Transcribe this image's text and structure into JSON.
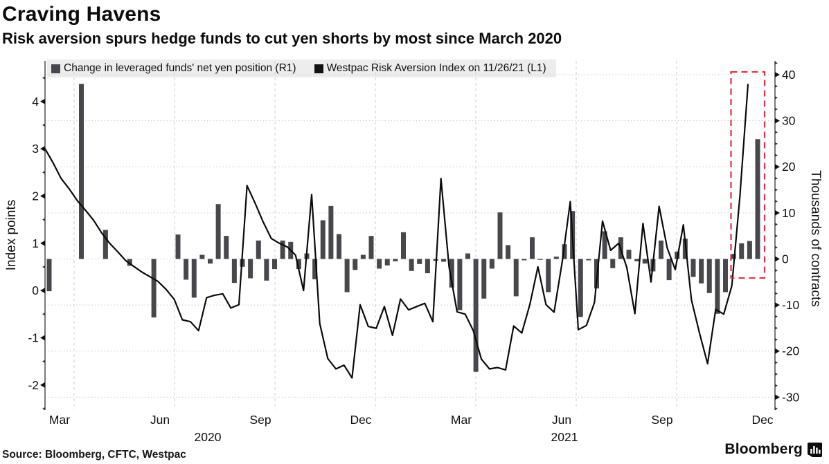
{
  "header": {
    "title": "Craving Havens",
    "subtitle": "Risk aversion spurs hedge funds to cut yen shorts by most since March 2020"
  },
  "legend": {
    "items": [
      {
        "label": "Change in leveraged funds' net yen position (R1)",
        "color": "#47474c"
      },
      {
        "label": "Westpac Risk Aversion Index on 11/26/21 (L1)",
        "color": "#121212"
      }
    ]
  },
  "footer": {
    "source": "Source: Bloomberg, CFTC, Westpac",
    "brand": "Bloomberg"
  },
  "chart_data": {
    "type": "bar+line combo, dual axis",
    "x_axis": {
      "month_tick_labels": [
        "Mar",
        "Jun",
        "Sep",
        "Dec",
        "Mar",
        "Jun",
        "Sep",
        "Dec"
      ],
      "year_labels": [
        "2020",
        "2021"
      ],
      "gridlines": "vertical dashed at each quarter"
    },
    "left_axis": {
      "title": "Index points",
      "ticks": [
        4,
        3,
        2,
        1,
        0,
        -1,
        -2
      ],
      "range_min": -2.53,
      "range_max": 4.86,
      "minor_tick_step": 0.5
    },
    "right_axis": {
      "title": "Thousands of contracts",
      "ticks": [
        40,
        30,
        20,
        10,
        0,
        -10,
        -20,
        -30
      ],
      "range_min": -32.8,
      "range_max": 43.0,
      "minor_tick_step": 2.5
    },
    "series": [
      {
        "name": "Change in leveraged funds' net yen position (R1)",
        "type": "bar",
        "axis": "right",
        "color": "#47474c",
        "frequency": "weekly",
        "values": [
          -7,
          0,
          0,
          0,
          38,
          0,
          0,
          6.3,
          0,
          0,
          -1.5,
          0,
          0,
          -12.7,
          0,
          0,
          5.3,
          -4.5,
          -8.4,
          0.9,
          -1,
          11.9,
          5,
          -5.2,
          -1.7,
          -4.2,
          4,
          -4.7,
          -2.2,
          4,
          3.7,
          -2.2,
          1.2,
          -4.4,
          8.4,
          11.5,
          5.4,
          -7.2,
          -2.4,
          0.9,
          5,
          -2.1,
          -1.4,
          -0.5,
          5.8,
          -2.6,
          -1.1,
          -3.1,
          -0.4,
          -0.6,
          -6.2,
          -11.1,
          1.2,
          -24.5,
          -8.6,
          -2.1,
          10.1,
          3,
          -8.1,
          -0.3,
          4.7,
          -0.2,
          -7.2,
          0.5,
          3.2,
          10.4,
          -12.6,
          -0.3,
          -6.4,
          6,
          -2,
          4.7,
          2,
          -0.5,
          -1,
          -2.7,
          4,
          -4.6,
          1.6,
          4.4,
          -3.9,
          -5.3,
          -7.4,
          -11.9,
          -7.2,
          1.1,
          3.4,
          3.9,
          26
        ]
      },
      {
        "name": "Westpac Risk Aversion Index on 11/26/21 (L1)",
        "type": "line",
        "axis": "left",
        "color": "#0a0a0a",
        "frequency": "weekly",
        "values": [
          3,
          2.7,
          2.37,
          2.15,
          1.9,
          1.7,
          1.49,
          1.22,
          1,
          0.82,
          0.63,
          0.51,
          0.39,
          0.29,
          0.19,
          0.02,
          -0.19,
          -0.62,
          -0.66,
          -0.85,
          -0.15,
          -0.1,
          -0.07,
          -0.37,
          -0.3,
          2.22,
          1.85,
          1.45,
          1.1,
          1,
          0.92,
          0.75,
          0,
          2.03,
          -0.7,
          -1.44,
          -1.66,
          -1.58,
          -1.85,
          -0.3,
          -0.76,
          -0.8,
          -0.34,
          -0.95,
          -0.18,
          -0.41,
          -0.34,
          -0.27,
          -0.66,
          2.37,
          0.5,
          -0.45,
          -0.5,
          -0.85,
          -1.45,
          -1.66,
          -1.63,
          -1.68,
          -0.75,
          -0.9,
          -0.3,
          0.5,
          -0.3,
          -0.46,
          0.6,
          1.88,
          -0.83,
          -0.74,
          -0.25,
          1.47,
          0.85,
          1,
          0.49,
          -0.49,
          1.42,
          0.18,
          1.78,
          0.9,
          0.44,
          1.39,
          -0.2,
          -0.9,
          -1.55,
          -0.4,
          -0.5,
          0.1,
          2,
          4.36
        ]
      }
    ],
    "annotation": {
      "shape": "dashed-rectangle",
      "color": "#de3449",
      "covers": "final weeks: largest bar (+26) and risk index spike (4.36)"
    }
  }
}
